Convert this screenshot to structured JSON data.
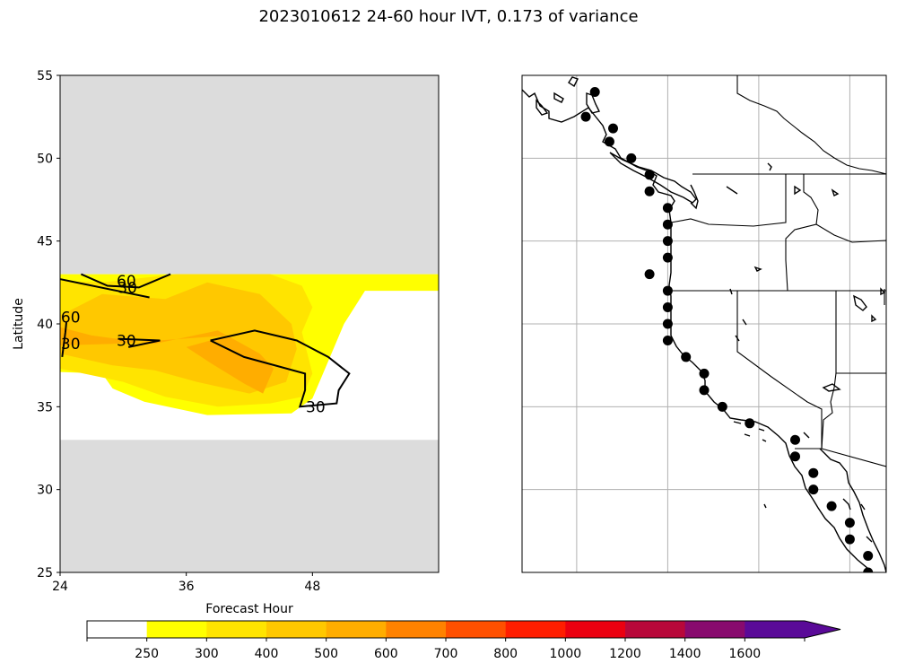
{
  "figure": {
    "title": "2023010612 24-60 hour IVT, 0.173 of variance"
  },
  "chart_data": [
    {
      "type": "contour",
      "panel": "left",
      "xlabel": "Forecast Hour",
      "ylabel": "Latitude",
      "xlim": [
        24,
        60
      ],
      "ylim": [
        25,
        55
      ],
      "xticks": [
        24,
        36,
        48
      ],
      "yticks": [
        25,
        30,
        35,
        40,
        45,
        50,
        55
      ],
      "xtick_labels": [
        "24",
        "36",
        "48"
      ],
      "ytick_labels": [
        "25",
        "30",
        "35",
        "40",
        "45",
        "50",
        "55"
      ],
      "masked_regions_lat": [
        [
          43,
          55
        ],
        [
          25,
          33
        ]
      ],
      "mask_color": "#dcdcdc",
      "filled_regions": [
        {
          "level": 250,
          "points": [
            [
              24,
              43
            ],
            [
              60,
              43
            ],
            [
              60,
              42
            ],
            [
              53,
              42
            ],
            [
              51,
              40
            ],
            [
              49,
              37
            ],
            [
              48,
              35.5
            ],
            [
              46,
              34.6
            ],
            [
              38,
              34.5
            ],
            [
              32,
              35.3
            ],
            [
              29,
              36.1
            ],
            [
              28,
              37.0
            ],
            [
              24,
              37.1
            ]
          ]
        },
        {
          "level": 300,
          "points": [
            [
              24,
              42.6
            ],
            [
              28,
              42.5
            ],
            [
              35,
              43
            ],
            [
              44,
              43
            ],
            [
              47,
              42.3
            ],
            [
              48,
              41
            ],
            [
              47,
              39.5
            ],
            [
              48,
              37
            ],
            [
              47,
              35.6
            ],
            [
              44,
              35.2
            ],
            [
              39,
              35.0
            ],
            [
              34,
              35.6
            ],
            [
              30,
              36.5
            ],
            [
              24,
              37.3
            ]
          ]
        },
        {
          "level": 400,
          "points": [
            [
              24,
              40.5
            ],
            [
              28,
              41.8
            ],
            [
              34,
              41.5
            ],
            [
              38,
              42.5
            ],
            [
              43,
              41.8
            ],
            [
              46,
              40
            ],
            [
              46.5,
              38.5
            ],
            [
              45.5,
              36.5
            ],
            [
              42,
              35.8
            ],
            [
              37,
              36.5
            ],
            [
              33,
              37.2
            ],
            [
              29,
              37.5
            ],
            [
              24,
              38.2
            ]
          ]
        },
        {
          "level": 500,
          "points": [
            [
              24,
              39.8
            ],
            [
              27,
              39.3
            ],
            [
              33,
              38.8
            ],
            [
              39,
              39.6
            ],
            [
              41,
              38.9
            ],
            [
              43,
              38.2
            ],
            [
              44.3,
              37.3
            ],
            [
              43.3,
              35.8
            ],
            [
              41.5,
              36.4
            ],
            [
              38.4,
              37.6
            ],
            [
              36,
              38.6
            ],
            [
              40,
              39.3
            ],
            [
              29,
              38.8
            ],
            [
              24,
              38.7
            ]
          ]
        }
      ],
      "contour_lines": [
        {
          "label": "30",
          "points": [
            [
              24,
              42.7
            ],
            [
              32.5,
              41.6
            ]
          ]
        },
        {
          "label": "60",
          "points": [
            [
              26,
              43
            ],
            [
              28.5,
              42.3
            ],
            [
              31.5,
              42.2
            ],
            [
              34.5,
              43
            ]
          ]
        },
        {
          "label": "30",
          "points": [
            [
              29.5,
              39.1
            ],
            [
              33.5,
              39.0
            ],
            [
              30.5,
              38.6
            ]
          ]
        },
        {
          "label": "30",
          "points": [
            [
              38.3,
              39.0
            ],
            [
              42.5,
              39.6
            ],
            [
              46.5,
              39.0
            ],
            [
              49.5,
              38.0
            ],
            [
              51.5,
              37.0
            ],
            [
              50.5,
              36.0
            ],
            [
              50.3,
              35.2
            ],
            [
              46.8,
              35.0
            ],
            [
              47.3,
              36.0
            ],
            [
              47.3,
              37.0
            ],
            [
              41.5,
              38.0
            ],
            [
              38.3,
              39.0
            ]
          ]
        },
        {
          "label": "",
          "points": [
            [
              24.2,
              38.0
            ],
            [
              24.5,
              39.5
            ],
            [
              24.6,
              40.1
            ]
          ]
        }
      ],
      "contour_labels": [
        {
          "text": "60",
          "x": 30.3,
          "y": 42.6
        },
        {
          "text": "30",
          "x": 30.4,
          "y": 42.2
        },
        {
          "text": "30",
          "x": 30.3,
          "y": 39.0
        },
        {
          "text": "30",
          "x": 48.3,
          "y": 35.0
        },
        {
          "text": "30",
          "x": 25.0,
          "y": 38.8
        },
        {
          "text": "60",
          "x": 25.0,
          "y": 40.4
        }
      ]
    },
    {
      "type": "scatter",
      "panel": "right",
      "description": "coastal points on map",
      "xlim": [
        -132,
        -112
      ],
      "ylim": [
        25,
        55
      ],
      "graticule_lon": [
        -129,
        -124,
        -119,
        -114
      ],
      "graticule_lat": [
        30,
        35,
        40,
        45,
        50
      ],
      "points": [
        [
          -128,
          54
        ],
        [
          -128.5,
          52.5
        ],
        [
          -127,
          51.8
        ],
        [
          -127.2,
          51.0
        ],
        [
          -126,
          50.0
        ],
        [
          -125,
          49.0
        ],
        [
          -125,
          48.0
        ],
        [
          -124,
          47.0
        ],
        [
          -124,
          46.0
        ],
        [
          -124,
          45.0
        ],
        [
          -124,
          44.0
        ],
        [
          -125,
          43.0
        ],
        [
          -124,
          42.0
        ],
        [
          -124,
          41.0
        ],
        [
          -124,
          40.0
        ],
        [
          -124,
          39.0
        ],
        [
          -123,
          38.0
        ],
        [
          -122,
          37.0
        ],
        [
          -122,
          36.0
        ],
        [
          -121,
          35.0
        ],
        [
          -119.5,
          34.0
        ],
        [
          -117,
          33.0
        ],
        [
          -117,
          32.0
        ],
        [
          -116,
          31.0
        ],
        [
          -116,
          30.0
        ],
        [
          -115,
          29.0
        ],
        [
          -114,
          28.0
        ],
        [
          -114,
          27.0
        ],
        [
          -113,
          26.0
        ],
        [
          -113,
          25.0
        ]
      ]
    },
    {
      "type": "colorbar",
      "levels": [
        0,
        250,
        300,
        400,
        500,
        600,
        700,
        800,
        1000,
        1200,
        1400,
        1600,
        1800
      ],
      "tick_labels": [
        "250",
        "300",
        "400",
        "500",
        "600",
        "700",
        "800",
        "1000",
        "1200",
        "1400",
        "1600"
      ],
      "colors": [
        "#ffffff",
        "#ffff00",
        "#ffe400",
        "#ffc800",
        "#ffad00",
        "#ff8200",
        "#ff5000",
        "#ff1e00",
        "#eb0010",
        "#b8083a",
        "#880a6e",
        "#5a0a98"
      ],
      "extend": "max"
    }
  ]
}
